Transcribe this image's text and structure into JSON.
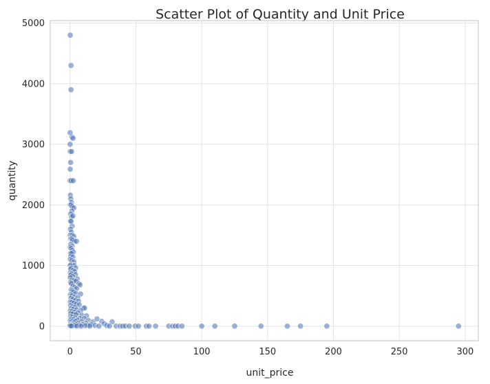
{
  "chart_data": {
    "type": "scatter",
    "title": "Scatter Plot of Quantity and Unit Price",
    "xlabel": "unit_price",
    "ylabel": "quantity",
    "xlim": [
      -15,
      310
    ],
    "ylim": [
      -240,
      5040
    ],
    "xticks": [
      0,
      50,
      100,
      150,
      200,
      250,
      300
    ],
    "yticks": [
      0,
      1000,
      2000,
      3000,
      4000,
      5000
    ],
    "grid": true,
    "colors": {
      "point": "#4c72b0",
      "grid": "#e3e3e3",
      "frame": "#cccccc"
    },
    "series": [
      {
        "points": [
          [
            0.2,
            4800
          ],
          [
            0.8,
            4300
          ],
          [
            0.8,
            3900
          ],
          [
            0.1,
            3190
          ],
          [
            1.5,
            3120
          ],
          [
            2.3,
            3100
          ],
          [
            0.1,
            3000
          ],
          [
            0.2,
            2880
          ],
          [
            1.2,
            2880
          ],
          [
            0.5,
            2700
          ],
          [
            0.2,
            2590
          ],
          [
            0.1,
            2400
          ],
          [
            1.0,
            2400
          ],
          [
            2.5,
            2400
          ],
          [
            0.3,
            2160
          ],
          [
            0.6,
            2100
          ],
          [
            1.1,
            2040
          ],
          [
            0.2,
            2000
          ],
          [
            0.9,
            2000
          ],
          [
            1.8,
            1970
          ],
          [
            2.9,
            1950
          ],
          [
            1.4,
            1900
          ],
          [
            0.5,
            1850
          ],
          [
            1.2,
            1800
          ],
          [
            2.2,
            1820
          ],
          [
            0.3,
            1730
          ],
          [
            0.8,
            1730
          ],
          [
            1.6,
            1650
          ],
          [
            0.4,
            1600
          ],
          [
            1.0,
            1550
          ],
          [
            0.2,
            1500
          ],
          [
            1.7,
            1500
          ],
          [
            2.8,
            1480
          ],
          [
            0.5,
            1440
          ],
          [
            1.3,
            1440
          ],
          [
            2.1,
            1420
          ],
          [
            3.4,
            1400
          ],
          [
            4.9,
            1400
          ],
          [
            0.6,
            1350
          ],
          [
            1.6,
            1320
          ],
          [
            0.2,
            1300
          ],
          [
            0.9,
            1280
          ],
          [
            1.8,
            1250
          ],
          [
            2.5,
            1220
          ],
          [
            0.4,
            1200
          ],
          [
            1.2,
            1200
          ],
          [
            0.7,
            1150
          ],
          [
            2.2,
            1140
          ],
          [
            0.3,
            1100
          ],
          [
            1.4,
            1080
          ],
          [
            2.9,
            1060
          ],
          [
            0.8,
            1020
          ],
          [
            1.9,
            1000
          ],
          [
            3.2,
            1000
          ],
          [
            0.2,
            1000
          ],
          [
            4.3,
            960
          ],
          [
            1.0,
            960
          ],
          [
            0.5,
            940
          ],
          [
            2.4,
            920
          ],
          [
            3.5,
            900
          ],
          [
            0.3,
            880
          ],
          [
            1.2,
            864
          ],
          [
            4.1,
            850
          ],
          [
            0.6,
            840
          ],
          [
            2.0,
            820
          ],
          [
            5.5,
            780
          ],
          [
            0.2,
            800
          ],
          [
            1.5,
            760
          ],
          [
            3.0,
            750
          ],
          [
            4.6,
            740
          ],
          [
            6.8,
            700
          ],
          [
            7.6,
            680
          ],
          [
            0.4,
            720
          ],
          [
            1.1,
            700
          ],
          [
            2.3,
            660
          ],
          [
            3.6,
            640
          ],
          [
            5.1,
            620
          ],
          [
            0.9,
            600
          ],
          [
            1.8,
            580
          ],
          [
            2.7,
            560
          ],
          [
            4.4,
            540
          ],
          [
            8.0,
            530
          ],
          [
            0.3,
            520
          ],
          [
            1.4,
            500
          ],
          [
            3.3,
            480
          ],
          [
            5.9,
            470
          ],
          [
            0.7,
            460
          ],
          [
            2.1,
            440
          ],
          [
            4.0,
            420
          ],
          [
            6.5,
            410
          ],
          [
            0.2,
            400
          ],
          [
            1.3,
            390
          ],
          [
            2.9,
            380
          ],
          [
            4.8,
            360
          ],
          [
            7.1,
            350
          ],
          [
            0.5,
            340
          ],
          [
            1.9,
            320
          ],
          [
            3.7,
            310
          ],
          [
            10.2,
            300
          ],
          [
            11.0,
            300
          ],
          [
            0.8,
            290
          ],
          [
            2.5,
            280
          ],
          [
            5.0,
            270
          ],
          [
            8.2,
            260
          ],
          [
            0.3,
            250
          ],
          [
            1.5,
            240
          ],
          [
            3.4,
            230
          ],
          [
            6.1,
            220
          ],
          [
            0.6,
            210
          ],
          [
            2.2,
            200
          ],
          [
            4.5,
            190
          ],
          [
            9.0,
            180
          ],
          [
            12.5,
            170
          ],
          [
            0.4,
            160
          ],
          [
            1.7,
            150
          ],
          [
            3.9,
            140
          ],
          [
            7.5,
            130
          ],
          [
            10.8,
            125
          ],
          [
            0.9,
            120
          ],
          [
            2.8,
            110
          ],
          [
            5.5,
            100
          ],
          [
            14.0,
            95
          ],
          [
            0.2,
            90
          ],
          [
            1.6,
            85
          ],
          [
            4.2,
            80
          ],
          [
            8.7,
            75
          ],
          [
            17.5,
            72
          ],
          [
            24.0,
            80
          ],
          [
            32.0,
            72
          ],
          [
            0.7,
            60
          ],
          [
            3.0,
            55
          ],
          [
            6.3,
            50
          ],
          [
            12.0,
            48
          ],
          [
            20.5,
            120
          ],
          [
            26.0,
            40
          ],
          [
            1.1,
            36
          ],
          [
            4.7,
            30
          ],
          [
            9.5,
            28
          ],
          [
            16.0,
            26
          ],
          [
            0.3,
            24
          ],
          [
            2.4,
            20
          ],
          [
            7.0,
            18
          ],
          [
            13.5,
            16
          ],
          [
            0.6,
            12
          ],
          [
            3.6,
            10
          ],
          [
            11.5,
            8
          ],
          [
            19.0,
            12
          ],
          [
            28.0,
            10
          ],
          [
            0.1,
            6
          ],
          [
            1.2,
            4
          ],
          [
            5.2,
            2
          ],
          [
            8.5,
            1
          ],
          [
            15.0,
            2
          ],
          [
            22.0,
            1
          ],
          [
            30.0,
            3
          ],
          [
            35.0,
            2
          ],
          [
            38.0,
            1
          ],
          [
            40.0,
            1
          ],
          [
            42.0,
            2
          ],
          [
            45.0,
            1
          ],
          [
            49.5,
            1
          ],
          [
            52.0,
            1
          ],
          [
            58.0,
            1
          ],
          [
            60.0,
            1
          ],
          [
            65.0,
            1
          ],
          [
            75.0,
            1
          ],
          [
            78.0,
            1
          ],
          [
            80.0,
            1
          ],
          [
            82.0,
            1
          ],
          [
            85.0,
            1
          ],
          [
            100.0,
            1
          ],
          [
            110.0,
            1
          ],
          [
            125.0,
            1
          ],
          [
            145.0,
            1
          ],
          [
            165.0,
            1
          ],
          [
            175.0,
            1
          ],
          [
            195.0,
            1
          ],
          [
            295.0,
            1
          ]
        ]
      }
    ]
  }
}
